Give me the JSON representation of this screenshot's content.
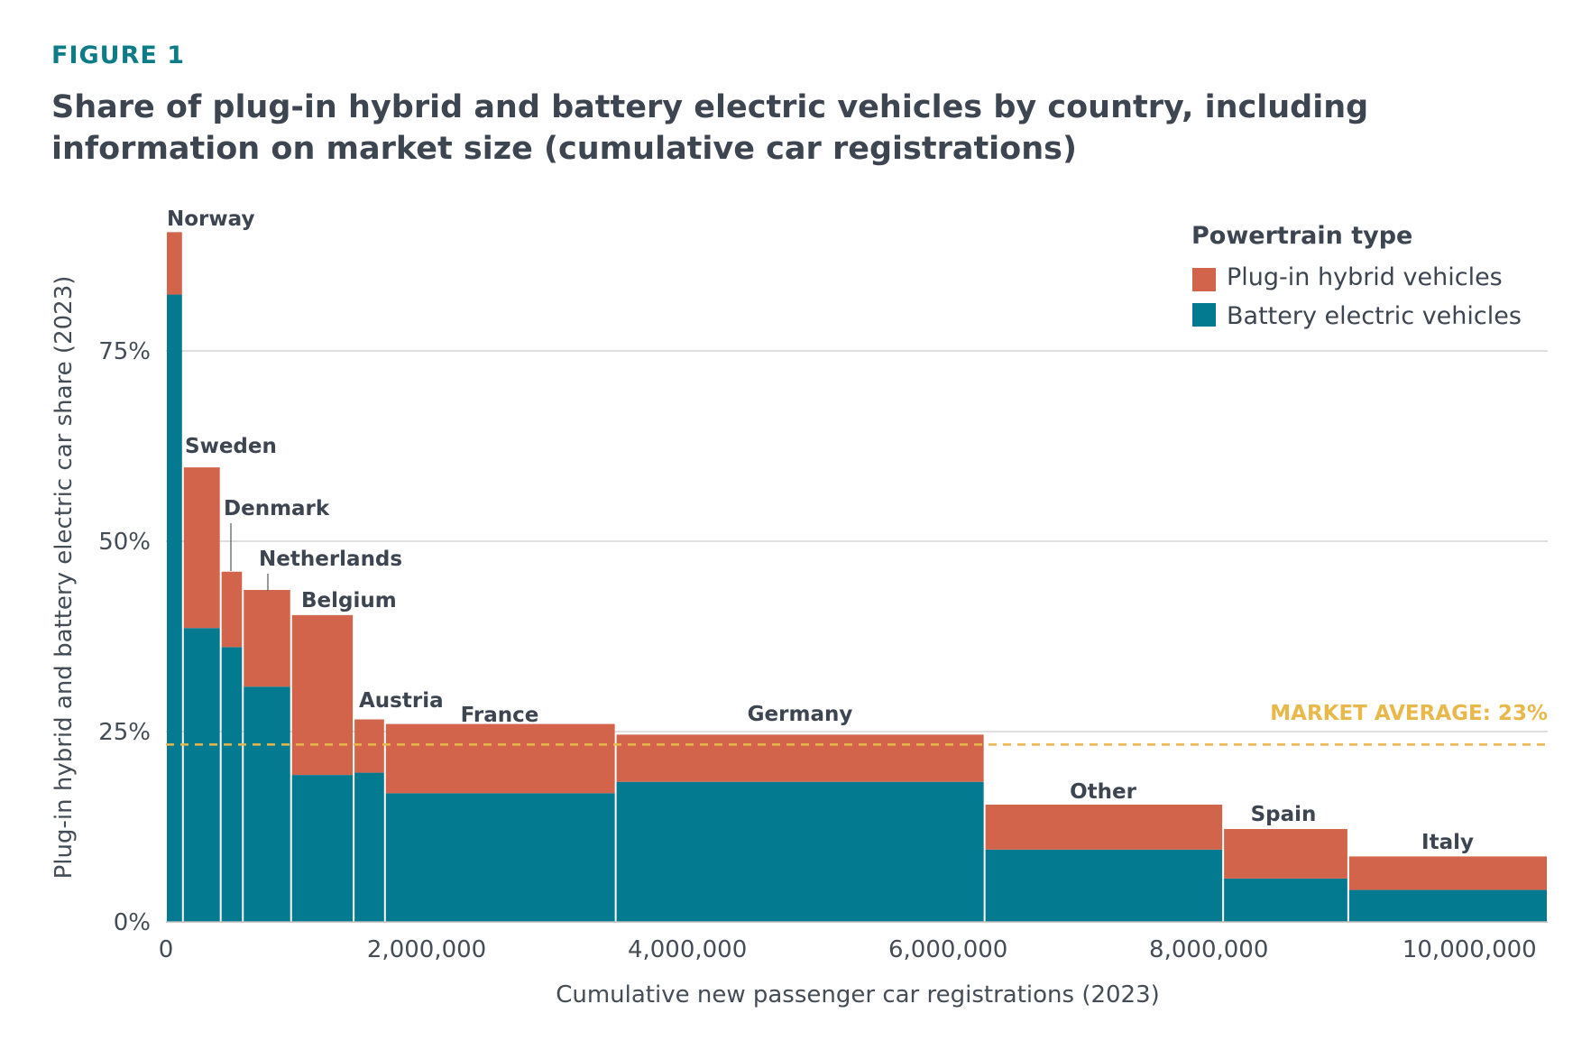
{
  "figure_label": "FIGURE 1",
  "title": "Share of plug-in hybrid and battery electric vehicles by country, including information on market size (cumulative car registrations)",
  "colors": {
    "phev": "#d2644c",
    "bev": "#037a8f",
    "average": "#e8b84a",
    "grid": "#cccccc",
    "text": "#3d4550"
  },
  "chart_data": {
    "type": "bar",
    "subtype": "variable-width stacked (mekko)",
    "xlabel": "Cumulative new passenger car registrations (2023)",
    "ylabel": "Plug-in hybrid and battery electric car share (2023)",
    "xlim": [
      0,
      10600000
    ],
    "ylim": [
      0,
      90
    ],
    "x_ticks": [
      {
        "value": 0,
        "label": "0"
      },
      {
        "value": 2000000,
        "label": "2,000,000"
      },
      {
        "value": 4000000,
        "label": "4,000,000"
      },
      {
        "value": 6000000,
        "label": "6,000,000"
      },
      {
        "value": 8000000,
        "label": "8,000,000"
      },
      {
        "value": 10000000,
        "label": "10,000,000"
      }
    ],
    "y_ticks": [
      {
        "value": 0,
        "label": "0%"
      },
      {
        "value": 25,
        "label": "25%"
      },
      {
        "value": 50,
        "label": "50%"
      },
      {
        "value": 75,
        "label": "75%"
      }
    ],
    "grid": true,
    "legend": {
      "title": "Powertrain type",
      "position": "top-right",
      "items": [
        {
          "label": "Plug-in hybrid vehicles",
          "color": "#d2644c"
        },
        {
          "label": "Battery electric vehicles",
          "color": "#037a8f"
        }
      ]
    },
    "series_names": [
      "Plug-in hybrid vehicles",
      "Battery electric vehicles"
    ],
    "average": {
      "value": 23.3,
      "label": "MARKET AVERAGE: 23%"
    },
    "countries": [
      {
        "name": "Norway",
        "x_start": 0,
        "x_end": 130000,
        "bev": 82.4,
        "phev": 8.2
      },
      {
        "name": "Sweden",
        "x_start": 130000,
        "x_end": 420000,
        "bev": 38.6,
        "phev": 21.1
      },
      {
        "name": "Denmark",
        "x_start": 420000,
        "x_end": 590000,
        "bev": 36.1,
        "phev": 9.9
      },
      {
        "name": "Netherlands",
        "x_start": 590000,
        "x_end": 960000,
        "bev": 30.9,
        "phev": 12.7
      },
      {
        "name": "Belgium",
        "x_start": 960000,
        "x_end": 1440000,
        "bev": 19.3,
        "phev": 21.0
      },
      {
        "name": "Austria",
        "x_start": 1440000,
        "x_end": 1680000,
        "bev": 19.6,
        "phev": 7.0
      },
      {
        "name": "France",
        "x_start": 1680000,
        "x_end": 3450000,
        "bev": 16.9,
        "phev": 9.1
      },
      {
        "name": "Germany",
        "x_start": 3450000,
        "x_end": 6280000,
        "bev": 18.4,
        "phev": 6.2
      },
      {
        "name": "Other",
        "x_start": 6280000,
        "x_end": 8110000,
        "bev": 9.5,
        "phev": 5.9
      },
      {
        "name": "Spain",
        "x_start": 8110000,
        "x_end": 9070000,
        "bev": 5.7,
        "phev": 6.5
      },
      {
        "name": "Italy",
        "x_start": 9070000,
        "x_end": 10600000,
        "bev": 4.2,
        "phev": 4.4
      }
    ]
  }
}
